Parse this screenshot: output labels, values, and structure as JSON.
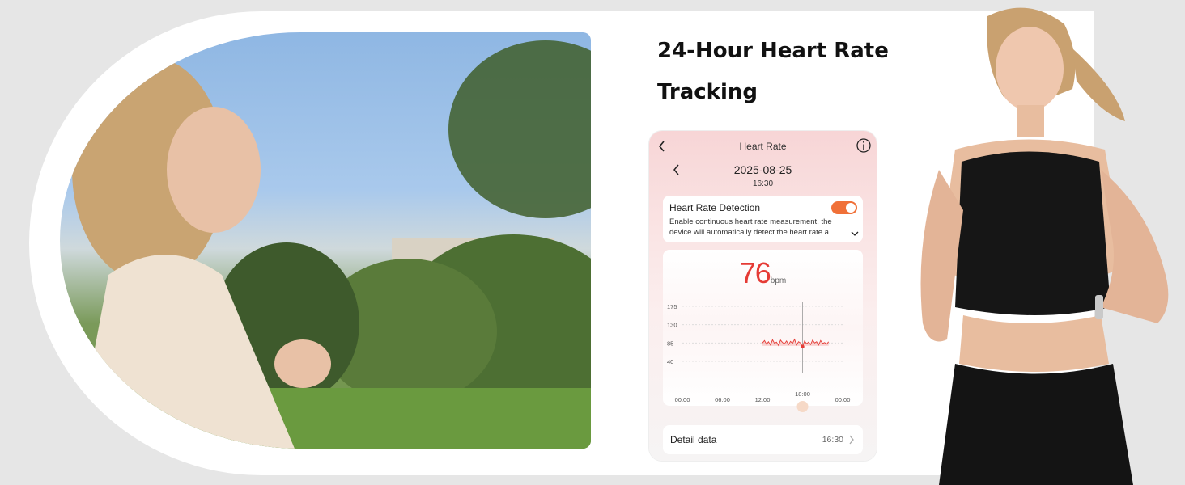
{
  "headline": "24-Hour Heart Rate Tracking",
  "phone": {
    "header_title": "Heart Rate",
    "date": "2025-08-25",
    "time": "16:30",
    "detection": {
      "title": "Heart Rate Detection",
      "description": "Enable continuous heart rate measurement, the device will automatically detect the heart rate a...",
      "enabled": true
    },
    "reading": {
      "value": "76",
      "unit": "bpm"
    },
    "detail": {
      "label": "Detail data",
      "time": "16:30"
    }
  },
  "chart_data": {
    "type": "line",
    "y_ticks": [
      "175",
      "130",
      "85",
      "40"
    ],
    "x_ticks": [
      "00:00",
      "06:00",
      "12:00",
      "18:00",
      "00:00"
    ],
    "cursor_label": "18:00",
    "ylim": [
      40,
      175
    ],
    "series": [
      {
        "x": [
          12.0,
          12.3,
          12.6,
          12.9,
          13.2,
          13.5,
          13.8,
          14.1,
          14.4,
          14.7,
          15.0,
          15.3,
          15.6,
          15.9,
          16.2,
          16.5,
          16.8,
          17.1,
          17.4,
          17.7,
          18.0,
          18.3,
          18.6,
          18.9,
          19.2,
          19.5,
          19.8,
          20.1,
          20.4,
          20.7,
          21.0,
          21.3,
          21.6,
          21.9
        ],
        "y": [
          85,
          91,
          82,
          88,
          80,
          93,
          84,
          87,
          79,
          92,
          86,
          83,
          90,
          81,
          89,
          84,
          94,
          80,
          88,
          85,
          76,
          90,
          83,
          87,
          81,
          92,
          85,
          88,
          80,
          91,
          84,
          86,
          82,
          88
        ]
      }
    ],
    "grid": true,
    "colors": {
      "line": "#e53b35",
      "fill": "#f6b7b4",
      "grid": "#d9d9d9",
      "cursor": "#e53b35"
    }
  },
  "colors": {
    "accent": "#e53b35",
    "toggle": "#f07038"
  }
}
